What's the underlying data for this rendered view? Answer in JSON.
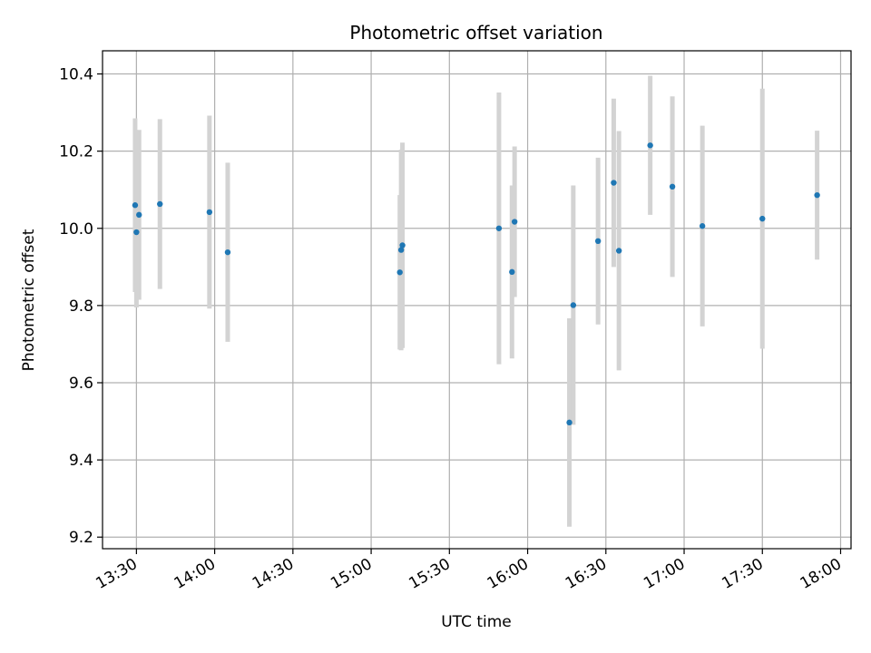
{
  "chart_data": {
    "type": "scatter",
    "title": "Photometric offset variation",
    "xlabel": "UTC time",
    "ylabel": "Photometric offset",
    "grid": true,
    "x_ticks": [
      "13:30",
      "14:00",
      "14:30",
      "15:00",
      "15:30",
      "16:00",
      "16:30",
      "17:00",
      "17:30",
      "18:00"
    ],
    "y_ticks": [
      "9.2",
      "9.4",
      "9.6",
      "9.8",
      "10.0",
      "10.2",
      "10.4"
    ],
    "xlim": [
      "13:17",
      "18:04"
    ],
    "ylim": [
      9.17,
      10.46
    ],
    "colors": {
      "points": "#1f77b4",
      "errorbars": "#d3d3d3",
      "grid": "#b0b0b0"
    },
    "series": [
      {
        "points": [
          {
            "x": "13:29:30",
            "y": 10.06,
            "err": 0.225
          },
          {
            "x": "13:30:00",
            "y": 9.99,
            "err": 0.195
          },
          {
            "x": "13:31:00",
            "y": 10.035,
            "err": 0.22
          },
          {
            "x": "13:39:00",
            "y": 10.063,
            "err": 0.22
          },
          {
            "x": "13:58:00",
            "y": 10.042,
            "err": 0.25
          },
          {
            "x": "14:05:00",
            "y": 9.938,
            "err": 0.232
          },
          {
            "x": "15:11:00",
            "y": 9.886,
            "err": 0.2
          },
          {
            "x": "15:11:30",
            "y": 9.944,
            "err": 0.26
          },
          {
            "x": "15:12:00",
            "y": 9.956,
            "err": 0.266
          },
          {
            "x": "15:49:00",
            "y": 10.0,
            "err": 0.352
          },
          {
            "x": "15:54:00",
            "y": 9.887,
            "err": 0.224
          },
          {
            "x": "15:55:00",
            "y": 10.017,
            "err": 0.195
          },
          {
            "x": "16:16:00",
            "y": 9.497,
            "err": 0.27
          },
          {
            "x": "16:17:30",
            "y": 9.801,
            "err": 0.31
          },
          {
            "x": "16:27:00",
            "y": 9.967,
            "err": 0.216
          },
          {
            "x": "16:33:00",
            "y": 10.118,
            "err": 0.218
          },
          {
            "x": "16:35:00",
            "y": 9.942,
            "err": 0.31
          },
          {
            "x": "16:47:00",
            "y": 10.215,
            "err": 0.18
          },
          {
            "x": "16:55:30",
            "y": 10.108,
            "err": 0.234
          },
          {
            "x": "17:07:00",
            "y": 10.006,
            "err": 0.26
          },
          {
            "x": "17:30:00",
            "y": 10.025,
            "err": 0.337
          },
          {
            "x": "17:51:00",
            "y": 10.086,
            "err": 0.167
          }
        ]
      }
    ]
  }
}
